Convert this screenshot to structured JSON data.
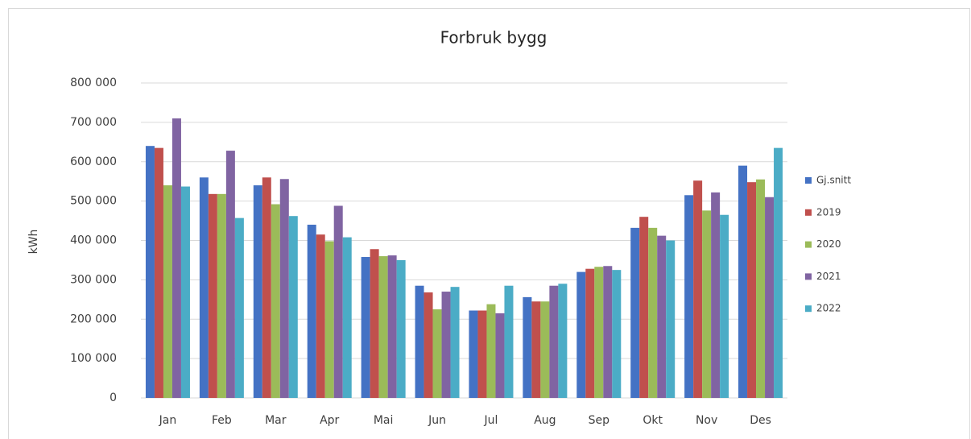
{
  "chart_data": {
    "type": "bar",
    "title": "Forbruk bygg",
    "y_label": "kWh",
    "categories": [
      "Jan",
      "Feb",
      "Mar",
      "Apr",
      "Mai",
      "Jun",
      "Jul",
      "Aug",
      "Sep",
      "Okt",
      "Nov",
      "Des"
    ],
    "series": [
      {
        "name": "Gj.snitt",
        "color": "#4472c4",
        "values": [
          640000,
          560000,
          540000,
          440000,
          358000,
          285000,
          222000,
          256000,
          320000,
          432000,
          515000,
          590000
        ]
      },
      {
        "name": "2019",
        "color": "#c0504d",
        "values": [
          635000,
          518000,
          560000,
          415000,
          378000,
          268000,
          222000,
          245000,
          328000,
          460000,
          552000,
          548000
        ]
      },
      {
        "name": "2020",
        "color": "#9bbb59",
        "values": [
          540000,
          518000,
          492000,
          398000,
          360000,
          225000,
          238000,
          245000,
          333000,
          432000,
          476000,
          555000
        ]
      },
      {
        "name": "2021",
        "color": "#8064a2",
        "values": [
          710000,
          628000,
          556000,
          488000,
          362000,
          270000,
          215000,
          285000,
          335000,
          412000,
          522000,
          510000
        ]
      },
      {
        "name": "2022",
        "color": "#4bacc6",
        "values": [
          537000,
          457000,
          462000,
          408000,
          350000,
          282000,
          285000,
          290000,
          325000,
          400000,
          465000,
          635000
        ]
      }
    ],
    "ylim": [
      0,
      800000
    ],
    "yticks": [
      0,
      {
        "value": 100000,
        "label": "100 000"
      },
      {
        "value": 200000,
        "label": "200 000"
      },
      {
        "value": 300000,
        "label": "300 000"
      },
      {
        "value": 400000,
        "label": "400 000"
      },
      {
        "value": 500000,
        "label": "500 000"
      },
      {
        "value": 600000,
        "label": "600 000"
      },
      {
        "value": 700000,
        "label": "700 000"
      },
      {
        "value": 800000,
        "label": "800 000"
      }
    ],
    "grid": true,
    "legend": "right"
  }
}
